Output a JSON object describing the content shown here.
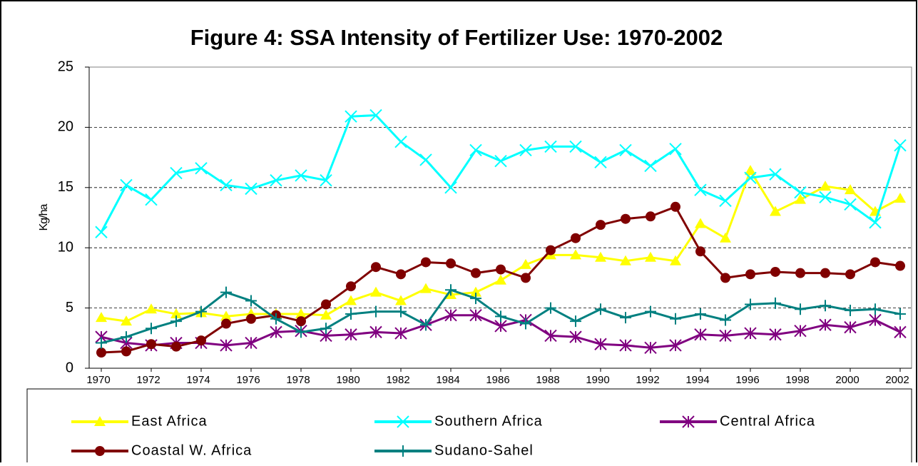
{
  "chart_data": {
    "type": "line",
    "title": "Figure 4: SSA Intensity of Fertilizer Use: 1970-2002",
    "y_label": "Kg/ha",
    "x": [
      1970,
      1971,
      1972,
      1973,
      1974,
      1975,
      1976,
      1977,
      1978,
      1979,
      1980,
      1981,
      1982,
      1983,
      1984,
      1985,
      1986,
      1987,
      1988,
      1989,
      1990,
      1991,
      1992,
      1993,
      1994,
      1995,
      1996,
      1997,
      1998,
      1999,
      2000,
      2001,
      2002
    ],
    "xlim": [
      1970,
      2002
    ],
    "xticks": [
      1970,
      1972,
      1974,
      1976,
      1978,
      1980,
      1982,
      1984,
      1986,
      1988,
      1990,
      1992,
      1994,
      1996,
      1998,
      2000,
      2002
    ],
    "ylim": [
      0,
      25
    ],
    "yticks": [
      0,
      5,
      10,
      15,
      20,
      25
    ],
    "grid": true,
    "legend": "bottom",
    "series": [
      {
        "name": "East Africa",
        "color": "#ffff00",
        "marker": "triangle",
        "values": [
          4.2,
          3.9,
          4.9,
          4.5,
          4.6,
          4.3,
          4.5,
          4.5,
          4.5,
          4.4,
          5.6,
          6.3,
          5.6,
          6.6,
          6.1,
          6.3,
          7.3,
          8.6,
          9.4,
          9.4,
          9.2,
          8.9,
          9.2,
          8.9,
          12.0,
          10.8,
          16.4,
          13.0,
          14.0,
          15.1,
          14.8,
          13.0,
          14.1
        ]
      },
      {
        "name": "Southern Africa",
        "color": "#00ffff",
        "marker": "x",
        "values": [
          11.3,
          15.2,
          14.0,
          16.2,
          16.6,
          15.2,
          14.9,
          15.6,
          16.0,
          15.6,
          20.9,
          21.0,
          18.8,
          17.3,
          15.0,
          18.1,
          17.2,
          18.1,
          18.4,
          18.4,
          17.1,
          18.1,
          16.8,
          18.2,
          14.8,
          13.9,
          15.8,
          16.1,
          14.6,
          14.2,
          13.6,
          12.1,
          18.5
        ]
      },
      {
        "name": "Central Africa",
        "color": "#800080",
        "marker": "star",
        "values": [
          2.6,
          2.1,
          1.9,
          2.1,
          2.1,
          1.9,
          2.1,
          3.0,
          3.1,
          2.7,
          2.8,
          3.0,
          2.9,
          3.6,
          4.4,
          4.4,
          3.5,
          4.0,
          2.7,
          2.6,
          2.0,
          1.9,
          1.7,
          1.9,
          2.8,
          2.7,
          2.9,
          2.8,
          3.1,
          3.6,
          3.4,
          4.0,
          3.0
        ]
      },
      {
        "name": "Coastal W. Africa",
        "color": "#800000",
        "marker": "circle",
        "values": [
          1.3,
          1.4,
          2.0,
          1.8,
          2.3,
          3.7,
          4.1,
          4.4,
          3.9,
          5.3,
          6.8,
          8.4,
          7.8,
          8.8,
          8.7,
          7.9,
          8.2,
          7.5,
          9.8,
          10.8,
          11.9,
          12.4,
          12.6,
          13.4,
          9.7,
          7.5,
          7.8,
          8.0,
          7.9,
          7.9,
          7.8,
          8.8,
          8.5
        ]
      },
      {
        "name": "Sudano-Sahel",
        "color": "#008080",
        "marker": "plus",
        "values": [
          2.1,
          2.6,
          3.3,
          3.9,
          4.7,
          6.3,
          5.6,
          4.1,
          3.0,
          3.3,
          4.5,
          4.7,
          4.7,
          3.6,
          6.5,
          5.8,
          4.3,
          3.7,
          5.0,
          3.9,
          4.9,
          4.2,
          4.7,
          4.1,
          4.5,
          4.0,
          5.3,
          5.4,
          4.9,
          5.2,
          4.8,
          4.9,
          4.5
        ]
      }
    ]
  }
}
